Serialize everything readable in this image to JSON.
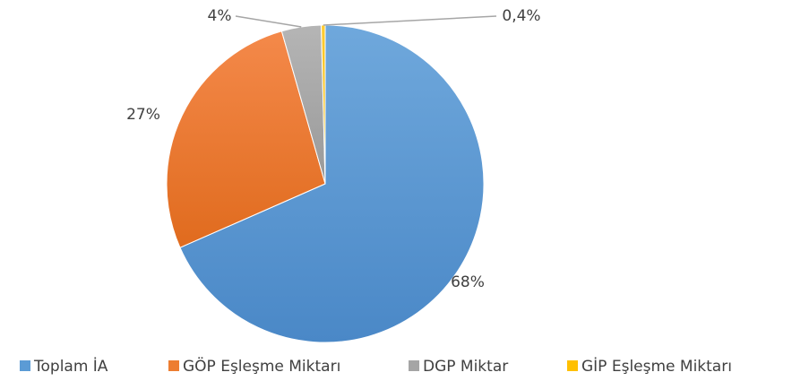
{
  "chart_data": {
    "type": "pie",
    "categories": [
      "Toplam İA",
      "GÖP Eşleşme Miktarı",
      "DGP Miktar",
      "GİP Eşleşme Miktarı"
    ],
    "values": [
      68,
      27,
      4,
      0.4
    ],
    "value_labels": [
      "68%",
      "27%",
      "4%",
      "0,4%"
    ],
    "colors": [
      "#5b9bd5",
      "#ed7d31",
      "#a5a5a5",
      "#ffc000"
    ],
    "legend": "bottom"
  }
}
